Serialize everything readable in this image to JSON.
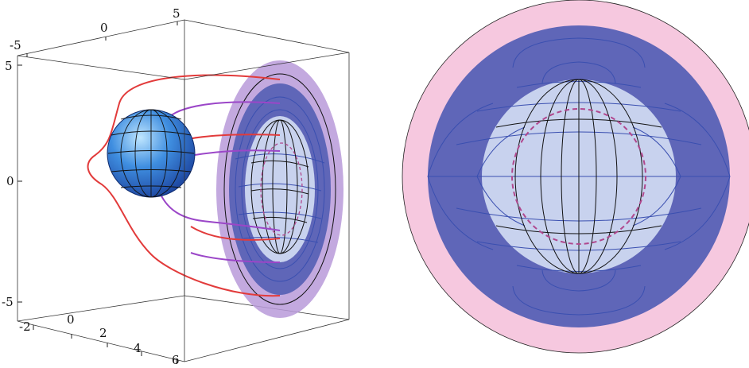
{
  "colors": {
    "outer_ring": "#f6c8df",
    "middle_ring": "#5f66b8",
    "inner_disk": "#c8d2ee",
    "violet_ring": "#b99ad9",
    "sphere": "#3f8ee0",
    "red_curve": "#e23b3b",
    "purple_curve": "#9b46c8",
    "dashed_circle": "#b0488e",
    "blue_line": "#3a4fb0"
  },
  "left_panel": {
    "axis_ticks": {
      "top_axis": [
        "-5",
        "0",
        "5"
      ],
      "vertical_axis": [
        "5",
        "0",
        "-5"
      ],
      "bottom_axis": [
        "-2",
        "0",
        "2",
        "4",
        "6"
      ]
    }
  }
}
